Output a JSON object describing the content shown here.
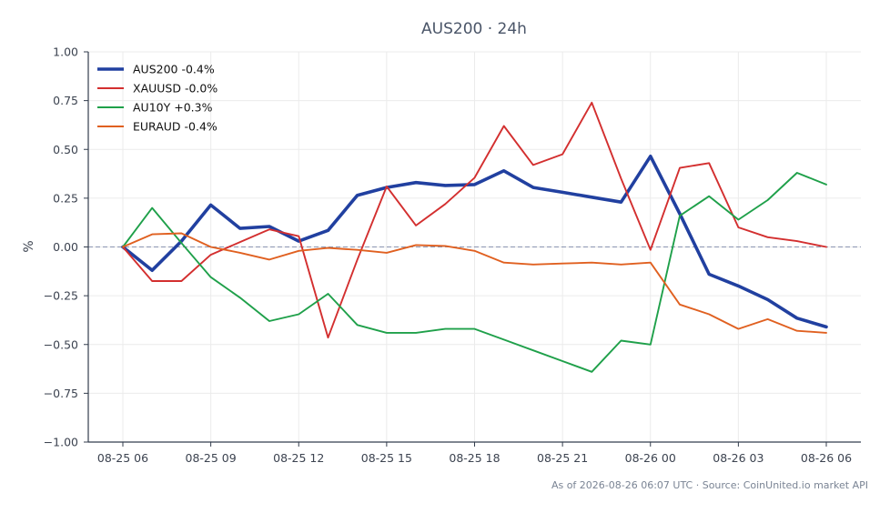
{
  "chart_data": {
    "type": "line",
    "title": "AUS200 · 24h",
    "xlabel": "",
    "ylabel": "%",
    "ylim": [
      -1.0,
      1.0
    ],
    "yticks": [
      1.0,
      0.75,
      0.5,
      0.25,
      0.0,
      -0.25,
      -0.5,
      -0.75,
      -1.0
    ],
    "ytick_labels": [
      "1.00",
      "0.75",
      "0.50",
      "0.25",
      "0.00",
      "−0.25",
      "−0.50",
      "−0.75",
      "−1.00"
    ],
    "x": [
      "08-25 06:00",
      "08-25 07:00",
      "08-25 08:00",
      "08-25 09:00",
      "08-25 10:00",
      "08-25 11:00",
      "08-25 12:00",
      "08-25 13:00",
      "08-25 14:00",
      "08-25 15:00",
      "08-25 16:00",
      "08-25 17:00",
      "08-25 18:00",
      "08-25 19:00",
      "08-25 20:00",
      "08-25 21:00",
      "08-25 22:00",
      "08-25 23:00",
      "08-26 00:00",
      "08-26 01:00",
      "08-26 02:00",
      "08-26 03:00",
      "08-26 04:00",
      "08-26 05:00",
      "08-26 06:00"
    ],
    "xticks": [
      0,
      3,
      6,
      9,
      12,
      15,
      18,
      21,
      24
    ],
    "xtick_labels": [
      "08-25 06",
      "08-25 09",
      "08-25 12",
      "08-25 15",
      "08-25 18",
      "08-25 21",
      "08-26 00",
      "08-26 03",
      "08-26 06"
    ],
    "grid": true,
    "zero_line": true,
    "legend_position": "top-left",
    "series": [
      {
        "name": "AUS200 -0.4%",
        "color": "#2140a0",
        "width": "thick",
        "values": [
          0.0,
          -0.12,
          0.03,
          0.215,
          0.095,
          0.105,
          0.03,
          0.085,
          0.265,
          0.305,
          0.33,
          0.315,
          0.32,
          0.39,
          0.305,
          0.28,
          0.255,
          0.23,
          0.465,
          0.17,
          -0.14,
          -0.2,
          -0.27,
          -0.365,
          -0.41
        ]
      },
      {
        "name": "XAUUSD -0.0%",
        "color": "#d32f2f",
        "width": "normal",
        "values": [
          0.0,
          -0.175,
          -0.175,
          -0.04,
          0.025,
          0.09,
          0.055,
          -0.465,
          -0.065,
          0.31,
          0.11,
          0.22,
          0.355,
          0.62,
          0.42,
          0.475,
          0.74,
          0.35,
          -0.015,
          0.405,
          0.43,
          0.1,
          0.05,
          0.03,
          0.0
        ]
      },
      {
        "name": "AU10Y +0.3%",
        "color": "#1fa04a",
        "width": "normal",
        "values": [
          0.0,
          0.2,
          0.02,
          -0.155,
          -0.26,
          -0.38,
          -0.345,
          -0.24,
          -0.4,
          -0.44,
          -0.44,
          -0.42,
          -0.42,
          -0.475,
          -0.53,
          -0.585,
          -0.64,
          -0.48,
          -0.5,
          0.16,
          0.26,
          0.14,
          0.24,
          0.38,
          0.32
        ]
      },
      {
        "name": "EURAUD -0.4%",
        "color": "#e06020",
        "width": "normal",
        "values": [
          0.0,
          0.065,
          0.07,
          0.0,
          -0.03,
          -0.065,
          -0.02,
          -0.005,
          -0.015,
          -0.03,
          0.01,
          0.005,
          -0.02,
          -0.08,
          -0.09,
          -0.085,
          -0.08,
          -0.09,
          -0.08,
          -0.295,
          -0.345,
          -0.42,
          -0.37,
          -0.43,
          -0.44
        ]
      }
    ]
  },
  "footer": "As of 2026-08-26 06:07 UTC · Source: CoinUnited.io market API"
}
